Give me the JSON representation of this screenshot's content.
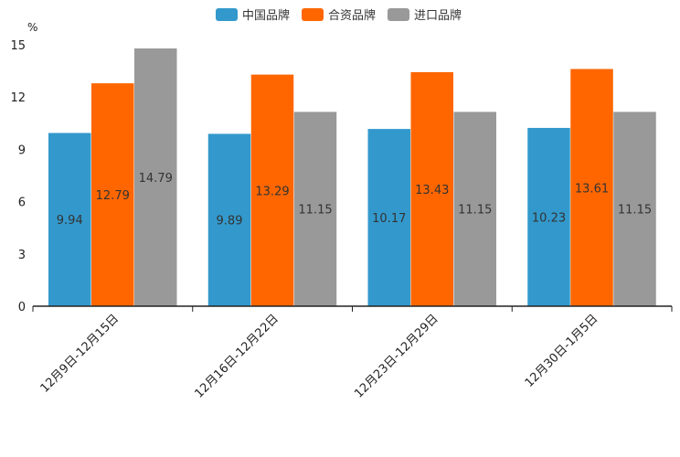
{
  "chart_data": {
    "type": "bar",
    "unit_label": "%",
    "ylim": [
      0,
      15
    ],
    "yticks": [
      0,
      3,
      6,
      9,
      12,
      15
    ],
    "categories": [
      "12月9日-12月15日",
      "12月16日-12月22日",
      "12月23日-12月29日",
      "12月30日-1月5日"
    ],
    "series": [
      {
        "name": "中国品牌",
        "color": "#3399cc",
        "values": [
          9.94,
          9.89,
          10.17,
          10.23
        ],
        "labels": [
          "9.94",
          "9.89",
          "10.17",
          "10.23"
        ]
      },
      {
        "name": "合资品牌",
        "color": "#ff6600",
        "values": [
          12.79,
          13.29,
          13.43,
          13.61
        ],
        "labels": [
          "12.79",
          "13.29",
          "13.43",
          "13.61"
        ]
      },
      {
        "name": "进口品牌",
        "color": "#999999",
        "values": [
          14.79,
          11.15,
          11.15,
          11.15
        ],
        "labels": [
          "14.79",
          "11.15",
          "11.15",
          "11.15"
        ]
      }
    ],
    "legend_position": "top-center",
    "grid": false
  }
}
